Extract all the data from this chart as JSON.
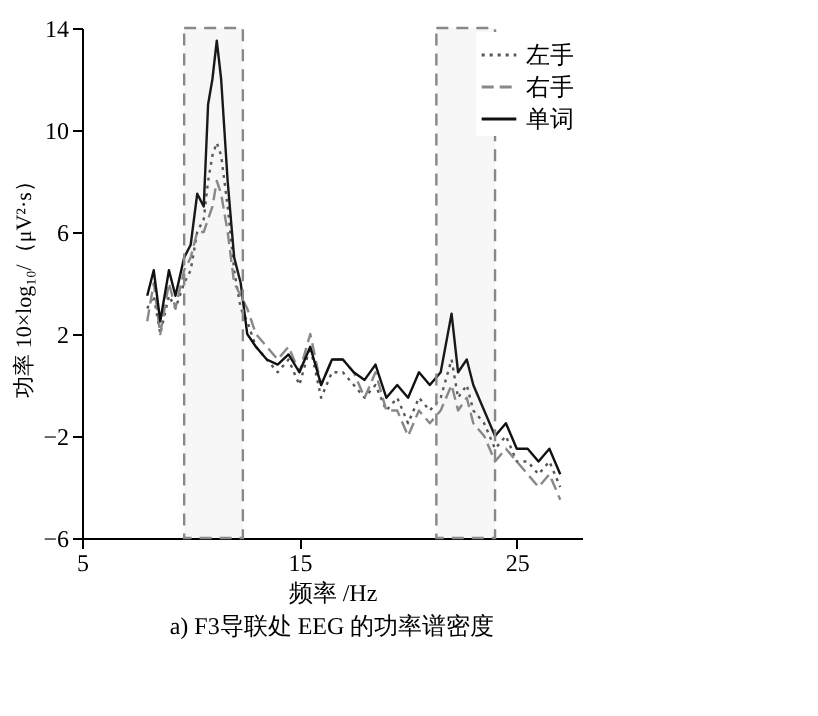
{
  "chart_data": {
    "type": "line",
    "title": "a)  F3导联处 EEG 的功率谱密度",
    "xlabel": "频率 /Hz",
    "ylabel": "功率 10×log₁₀/（μV²·s）",
    "xlim": [
      5,
      28
    ],
    "xticks": [
      5,
      15,
      25
    ],
    "ylim": [
      -6,
      14
    ],
    "yticks": [
      -6,
      -2,
      2,
      6,
      10,
      14
    ],
    "grid": false,
    "legend": "top right",
    "x": [
      8,
      8.3,
      8.6,
      9,
      9.3,
      9.7,
      10,
      10.3,
      10.6,
      10.8,
      11,
      11.2,
      11.4,
      11.7,
      12,
      12.3,
      12.6,
      13,
      13.5,
      14,
      14.5,
      15,
      15.5,
      16,
      16.5,
      17,
      17.5,
      18,
      18.5,
      19,
      19.5,
      20,
      20.5,
      21,
      21.5,
      22,
      22.3,
      22.7,
      23,
      23.5,
      24,
      24.5,
      25,
      25.5,
      26,
      26.5,
      27
    ],
    "series": [
      {
        "name": "左手",
        "color": "#555555",
        "line_style": "dotted",
        "values": [
          3,
          3.5,
          2,
          3.5,
          3,
          4,
          4.5,
          6,
          6.5,
          8,
          9,
          9.5,
          9,
          7,
          4.5,
          3,
          2.5,
          1.5,
          1,
          0.5,
          1,
          0,
          1.5,
          -0.5,
          0.5,
          0.5,
          0,
          -0.5,
          0,
          -1,
          -0.5,
          -1.5,
          -0.5,
          -1,
          -0.5,
          1,
          -0.5,
          0,
          -1,
          -1.5,
          -2.5,
          -2,
          -3,
          -3,
          -3.5,
          -3,
          -4
        ]
      },
      {
        "name": "右手",
        "color": "#888888",
        "line_style": "dashed",
        "values": [
          2.5,
          4,
          2,
          4,
          3,
          4.5,
          5,
          6,
          6,
          6.5,
          7,
          8,
          7.5,
          6,
          4,
          3.5,
          3,
          2,
          1.5,
          1,
          1.5,
          0.5,
          2,
          0,
          1,
          1,
          0.5,
          -0.5,
          0.5,
          -1,
          -1,
          -2,
          -1,
          -1.5,
          -1,
          0,
          -1,
          -0.5,
          -1.5,
          -2,
          -3,
          -2.5,
          -3,
          -3.5,
          -4,
          -3.5,
          -4.5
        ]
      },
      {
        "name": "单词",
        "color": "#111111",
        "line_style": "solid",
        "values": [
          3.5,
          4.5,
          2.5,
          4.5,
          3.5,
          5,
          5.5,
          7.5,
          7,
          11,
          12,
          13.5,
          12,
          8,
          5,
          4,
          2,
          1.5,
          1,
          0.8,
          1.2,
          0.5,
          1.5,
          0,
          1,
          1,
          0.5,
          0.2,
          0.8,
          -0.5,
          0,
          -0.5,
          0.5,
          0,
          0.5,
          2.8,
          0.5,
          1,
          0,
          -1,
          -2,
          -1.5,
          -2.5,
          -2.5,
          -3,
          -2.5,
          -3.5
        ]
      }
    ],
    "bands": [
      {
        "axis": "x",
        "from": 9.7,
        "to": 12.4,
        "color": "#888888"
      },
      {
        "axis": "x",
        "from": 21.3,
        "to": 24,
        "color": "#888888"
      }
    ]
  }
}
